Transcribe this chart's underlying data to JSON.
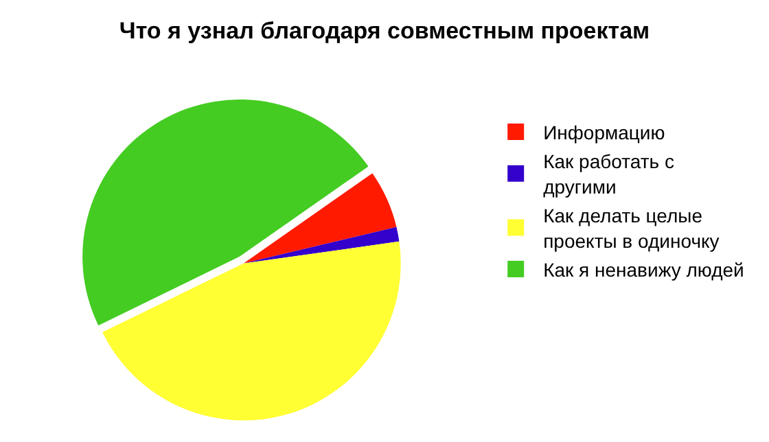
{
  "chart_data": {
    "type": "pie",
    "title": "Что я узнал благодаря совместным проектам",
    "categories": [
      "Информацию",
      "Как работать с другими",
      "Как делать целые проекты в одиночку",
      "Как я ненавижу людей"
    ],
    "values": [
      6,
      1.5,
      45,
      47.5
    ],
    "colors": [
      "#ff1a00",
      "#3300cc",
      "#ffff33",
      "#44cc22"
    ],
    "legend": "right"
  }
}
